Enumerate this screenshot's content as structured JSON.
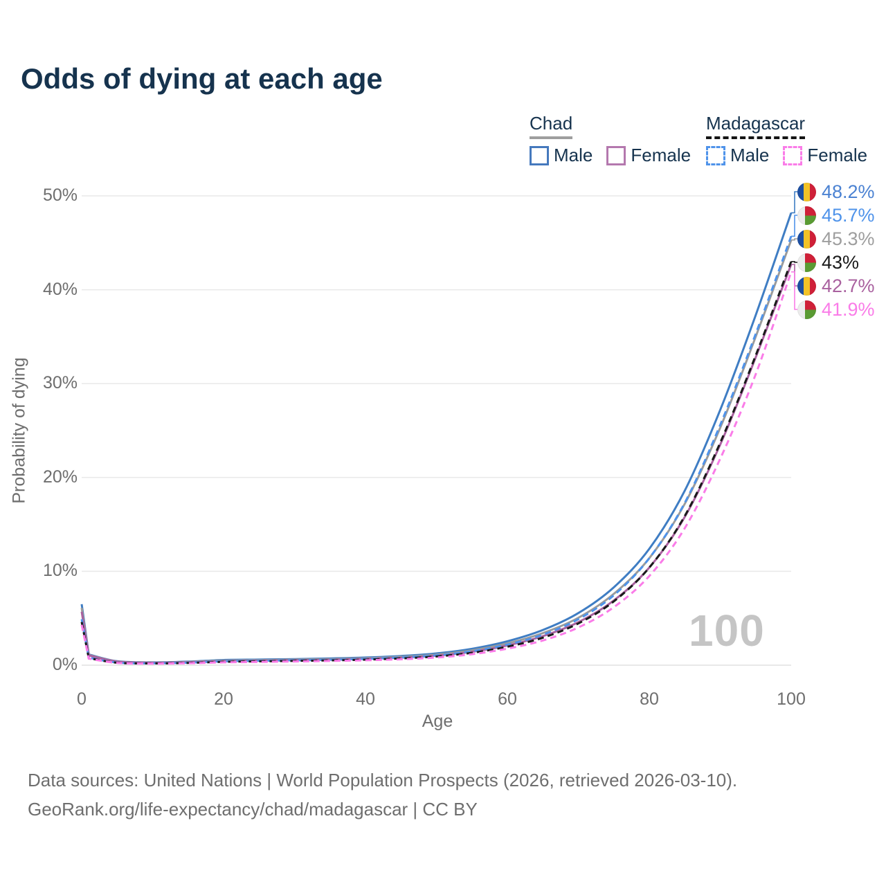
{
  "title": "Odds of dying at each age",
  "watermark": "100",
  "legend": {
    "groups": [
      {
        "name": "Chad",
        "style": "solid",
        "items": [
          {
            "label": "Male",
            "color": "#4579bd"
          },
          {
            "label": "Female",
            "color": "#b478ae"
          }
        ]
      },
      {
        "name": "Madagascar",
        "style": "dashed",
        "items": [
          {
            "label": "Male",
            "color": "#4f93ea"
          },
          {
            "label": "Female",
            "color": "#fa7ce8"
          }
        ]
      }
    ]
  },
  "axes": {
    "x": {
      "title": "Age",
      "ticks": [
        0,
        20,
        40,
        60,
        80,
        100
      ]
    },
    "y": {
      "title": "Probability of dying",
      "ticks": [
        "0%",
        "10%",
        "20%",
        "30%",
        "40%",
        "50%"
      ]
    }
  },
  "chart_data": {
    "type": "line",
    "title": "Odds of dying at each age",
    "xlabel": "Age",
    "ylabel": "Probability of dying",
    "xlim": [
      0,
      100
    ],
    "ylim": [
      0,
      50
    ],
    "y_unit": "%",
    "grid": "horizontal",
    "x": [
      0,
      1,
      5,
      10,
      15,
      20,
      25,
      30,
      35,
      40,
      45,
      50,
      55,
      60,
      65,
      70,
      75,
      80,
      85,
      90,
      95,
      100
    ],
    "series": [
      {
        "name": "Chad Male",
        "country": "Chad",
        "sex": "Male",
        "color": "#3f7dc3",
        "dash": "solid",
        "end_label": "48.2%",
        "end_label_color": "#4b82d2",
        "flag": "chad",
        "values": [
          6.5,
          1.15,
          0.42,
          0.3,
          0.38,
          0.55,
          0.6,
          0.65,
          0.72,
          0.82,
          0.98,
          1.25,
          1.75,
          2.55,
          3.75,
          5.55,
          8.3,
          12.4,
          18.6,
          27.2,
          37.3,
          48.2
        ]
      },
      {
        "name": "Madagascar Male",
        "country": "Madagascar",
        "sex": "Male",
        "color": "#4f93ea",
        "dash": "dashed",
        "end_label": "45.7%",
        "end_label_color": "#4f93ea",
        "flag": "madagascar",
        "values": [
          4.9,
          0.8,
          0.28,
          0.2,
          0.27,
          0.42,
          0.47,
          0.52,
          0.58,
          0.67,
          0.82,
          1.05,
          1.48,
          2.2,
          3.25,
          4.9,
          7.45,
          11.4,
          17.3,
          25.6,
          35.3,
          45.7
        ]
      },
      {
        "name": "Chad",
        "country": "Chad",
        "sex": "Both",
        "color": "#9b9b9b",
        "dash": "solid",
        "end_label": "45.3%",
        "end_label_color": "#9e9e9e",
        "flag": "chad",
        "values": [
          6.1,
          1.1,
          0.4,
          0.28,
          0.35,
          0.49,
          0.54,
          0.59,
          0.65,
          0.74,
          0.89,
          1.13,
          1.58,
          2.32,
          3.42,
          5.05,
          7.6,
          11.4,
          17.2,
          25.3,
          35.0,
          45.3
        ]
      },
      {
        "name": "Madagascar",
        "country": "Madagascar",
        "sex": "Both",
        "color": "#1a1a1a",
        "dash": "dashed",
        "end_label": "43%",
        "end_label_color": "#1a1a1a",
        "flag": "madagascar",
        "values": [
          4.6,
          0.75,
          0.26,
          0.19,
          0.24,
          0.36,
          0.41,
          0.46,
          0.51,
          0.59,
          0.72,
          0.93,
          1.32,
          1.97,
          2.93,
          4.45,
          6.8,
          10.4,
          15.9,
          23.7,
          33.0,
          43.0
        ]
      },
      {
        "name": "Chad Female",
        "country": "Chad",
        "sex": "Female",
        "color": "#a9619f",
        "dash": "solid",
        "end_label": "42.7%",
        "end_label_color": "#a9619f",
        "flag": "chad",
        "values": [
          5.7,
          1.05,
          0.38,
          0.26,
          0.31,
          0.43,
          0.48,
          0.53,
          0.58,
          0.67,
          0.8,
          1.01,
          1.42,
          2.1,
          3.1,
          4.58,
          6.9,
          10.4,
          15.8,
          23.5,
          32.8,
          42.7
        ]
      },
      {
        "name": "Madagascar Female",
        "country": "Madagascar",
        "sex": "Female",
        "color": "#fa7ce8",
        "dash": "dashed",
        "end_label": "41.9%",
        "end_label_color": "#fa7ce8",
        "flag": "madagascar",
        "values": [
          4.3,
          0.7,
          0.24,
          0.17,
          0.21,
          0.3,
          0.35,
          0.4,
          0.45,
          0.52,
          0.63,
          0.82,
          1.17,
          1.76,
          2.63,
          4.02,
          6.18,
          9.5,
          14.6,
          22.0,
          31.0,
          41.9
        ]
      }
    ]
  },
  "footer": {
    "line1": "Data sources: United Nations | World Population Prospects (2026, retrieved 2026-03-10).",
    "line2": "GeoRank.org/life-expectancy/chad/madagascar | CC BY"
  }
}
